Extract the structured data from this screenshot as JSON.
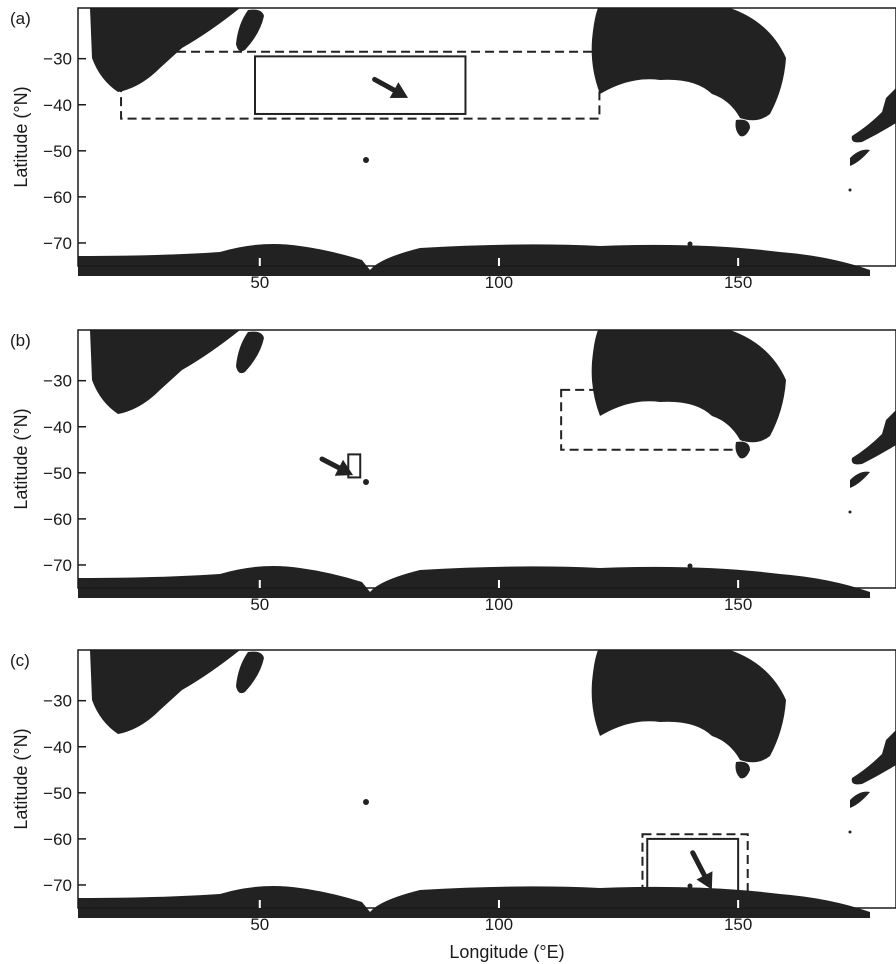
{
  "figure": {
    "x_axis_title": "Longitude (°E)",
    "y_axis_title": "Latitude (°N)",
    "x_ticks": [
      50,
      100,
      150
    ],
    "y_ticks": [
      -30,
      -40,
      -50,
      -60,
      -70
    ],
    "x_range": [
      12,
      183
    ],
    "y_range": [
      -75,
      -19
    ],
    "land_color": "#222222",
    "box_color": "#222222"
  },
  "panels": [
    {
      "label": "(a)",
      "boxes": [
        {
          "style": "dashed",
          "lon": [
            21,
            121
          ],
          "lat": [
            -43,
            -28.5
          ]
        },
        {
          "style": "solid",
          "lon": [
            49,
            93
          ],
          "lat": [
            -42,
            -29.5
          ]
        }
      ],
      "arrow": {
        "from": [
          74,
          -34.5
        ],
        "to": [
          81,
          -38.5
        ]
      }
    },
    {
      "label": "(b)",
      "boxes": [
        {
          "style": "dashed",
          "lon": [
            113,
            151
          ],
          "lat": [
            -45,
            -32
          ]
        },
        {
          "style": "solid",
          "lon": [
            68.5,
            71
          ],
          "lat": [
            -51,
            -46
          ]
        }
      ],
      "arrow": {
        "from": [
          63,
          -47
        ],
        "to": [
          69.5,
          -50.5
        ]
      }
    },
    {
      "label": "(c)",
      "boxes": [
        {
          "style": "dashed",
          "lon": [
            130,
            152
          ],
          "lat": [
            -73,
            -59
          ]
        },
        {
          "style": "solid",
          "lon": [
            131,
            150
          ],
          "lat": [
            -72,
            -60
          ]
        }
      ],
      "arrow": {
        "from": [
          140.5,
          -63
        ],
        "to": [
          144.5,
          -71
        ]
      }
    }
  ]
}
